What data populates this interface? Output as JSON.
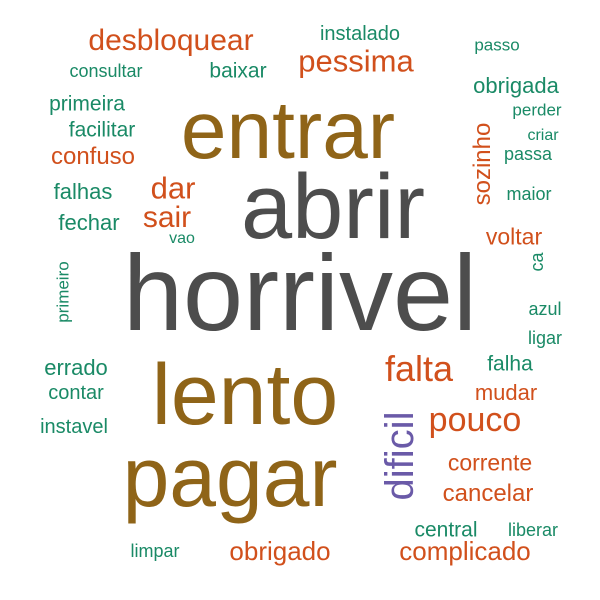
{
  "colors": {
    "dark_gray": "#4d4d4d",
    "brown": "#8f6418",
    "orange": "#d1501c",
    "teal": "#1a8a66",
    "purple": "#6a5aa8"
  },
  "words": {
    "horrivel": "horrivel",
    "abrir": "abrir",
    "entrar": "entrar",
    "lento": "lento",
    "pagar": "pagar",
    "dificil": "dificil",
    "falta": "falta",
    "pouco": "pouco",
    "desbloquear": "desbloquear",
    "pessima": "pessima",
    "dar": "dar",
    "sair": "sair",
    "confuso": "confuso",
    "sozinho": "sozinho",
    "voltar": "voltar",
    "mudar": "mudar",
    "corrente": "corrente",
    "cancelar": "cancelar",
    "obrigado": "obrigado",
    "complicado": "complicado",
    "instalado": "instalado",
    "passo": "passo",
    "consultar": "consultar",
    "baixar": "baixar",
    "obrigada": "obrigada",
    "primeira": "primeira",
    "perder": "perder",
    "facilitar": "facilitar",
    "criar": "criar",
    "passa": "passa",
    "falhas": "falhas",
    "maior": "maior",
    "fechar": "fechar",
    "vao": "vao",
    "ca": "ca",
    "primeiro": "primeiro",
    "azul": "azul",
    "ligar": "ligar",
    "errado": "errado",
    "falha": "falha",
    "contar": "contar",
    "instavel": "instavel",
    "central": "central",
    "liberar": "liberar",
    "limpar": "limpar"
  }
}
